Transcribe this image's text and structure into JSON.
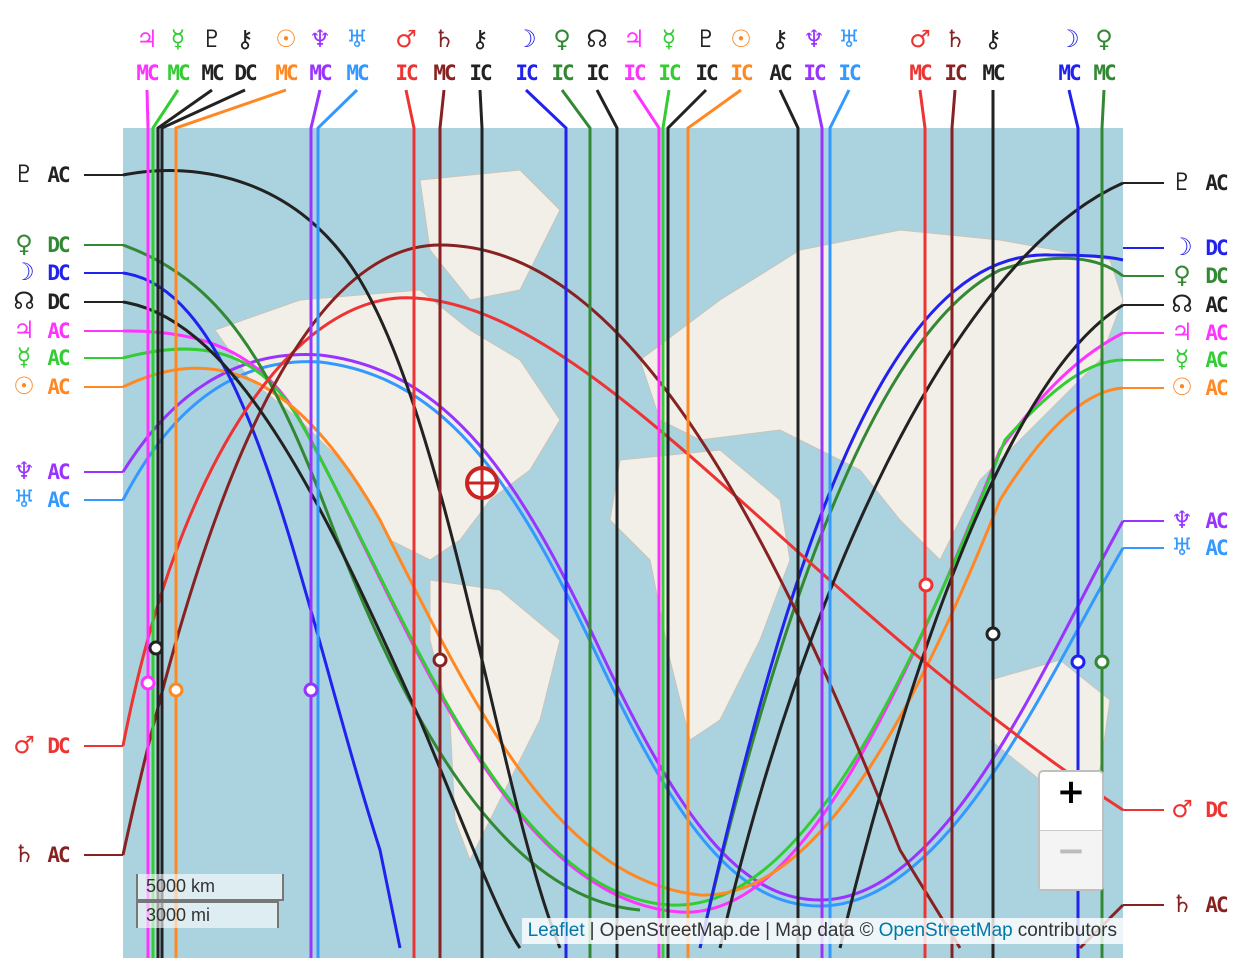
{
  "top_labels": [
    {
      "symbol": "♃",
      "angle": "MC",
      "color": "#ff33ff"
    },
    {
      "symbol": "☿",
      "angle": "MC",
      "color": "#33cc33"
    },
    {
      "symbol": "♇",
      "angle": "MC",
      "color": "#222222"
    },
    {
      "symbol": "⚷",
      "angle": "DC",
      "color": "#222222"
    },
    {
      "symbol": "☉",
      "angle": "MC",
      "color": "#ff8822"
    },
    {
      "symbol": "♆",
      "angle": "MC",
      "color": "#9933ff"
    },
    {
      "symbol": "♅",
      "angle": "MC",
      "color": "#3399ff"
    },
    {
      "symbol": "♂",
      "angle": "IC",
      "color": "#ee3333"
    },
    {
      "symbol": "♄",
      "angle": "MC",
      "color": "#882222"
    },
    {
      "symbol": "⚷",
      "angle": "IC",
      "color": "#222222"
    },
    {
      "symbol": "☽",
      "angle": "IC",
      "color": "#2222ee"
    },
    {
      "symbol": "♀",
      "angle": "IC",
      "color": "#338833"
    },
    {
      "symbol": "☊",
      "angle": "IC",
      "color": "#222222"
    },
    {
      "symbol": "♃",
      "angle": "IC",
      "color": "#ff33ff"
    },
    {
      "symbol": "☿",
      "angle": "IC",
      "color": "#33cc33"
    },
    {
      "symbol": "♇",
      "angle": "IC",
      "color": "#222222"
    },
    {
      "symbol": "☉",
      "angle": "IC",
      "color": "#ff8822"
    },
    {
      "symbol": "⚷",
      "angle": "AC",
      "color": "#222222"
    },
    {
      "symbol": "♆",
      "angle": "IC",
      "color": "#9933ff"
    },
    {
      "symbol": "♅",
      "angle": "IC",
      "color": "#3399ff"
    },
    {
      "symbol": "♂",
      "angle": "MC",
      "color": "#ee3333"
    },
    {
      "symbol": "♄",
      "angle": "IC",
      "color": "#882222"
    },
    {
      "symbol": "⚷",
      "angle": "MC",
      "color": "#222222"
    },
    {
      "symbol": "☽",
      "angle": "MC",
      "color": "#2222ee"
    },
    {
      "symbol": "♀",
      "angle": "MC",
      "color": "#338833"
    }
  ],
  "left_labels": [
    {
      "symbol": "♇",
      "angle": "AC",
      "color": "#222222"
    },
    {
      "symbol": "♀",
      "angle": "DC",
      "color": "#338833"
    },
    {
      "symbol": "☽",
      "angle": "DC",
      "color": "#2222ee"
    },
    {
      "symbol": "☊",
      "angle": "DC",
      "color": "#222222"
    },
    {
      "symbol": "♃",
      "angle": "AC",
      "color": "#ff33ff"
    },
    {
      "symbol": "☿",
      "angle": "AC",
      "color": "#33cc33"
    },
    {
      "symbol": "☉",
      "angle": "AC",
      "color": "#ff8822"
    },
    {
      "symbol": "♆",
      "angle": "AC",
      "color": "#9933ff"
    },
    {
      "symbol": "♅",
      "angle": "AC",
      "color": "#3399ff"
    },
    {
      "symbol": "♂",
      "angle": "DC",
      "color": "#ee3333"
    },
    {
      "symbol": "♄",
      "angle": "AC",
      "color": "#882222"
    }
  ],
  "right_labels": [
    {
      "symbol": "♇",
      "angle": "AC",
      "color": "#222222"
    },
    {
      "symbol": "☽",
      "angle": "DC",
      "color": "#2222ee"
    },
    {
      "symbol": "♀",
      "angle": "DC",
      "color": "#338833"
    },
    {
      "symbol": "☊",
      "angle": "AC",
      "color": "#222222"
    },
    {
      "symbol": "♃",
      "angle": "AC",
      "color": "#ff33ff"
    },
    {
      "symbol": "☿",
      "angle": "AC",
      "color": "#33cc33"
    },
    {
      "symbol": "☉",
      "angle": "AC",
      "color": "#ff8822"
    },
    {
      "symbol": "♆",
      "angle": "AC",
      "color": "#9933ff"
    },
    {
      "symbol": "♅",
      "angle": "AC",
      "color": "#3399ff"
    },
    {
      "symbol": "♂",
      "angle": "DC",
      "color": "#ee3333"
    },
    {
      "symbol": "♄",
      "angle": "AC",
      "color": "#882222"
    }
  ],
  "scale": {
    "km": "5000 km",
    "mi": "3000 mi"
  },
  "zoom": {
    "in": "+",
    "out": "−"
  },
  "attribution": [
    "Leaflet",
    "|",
    "OpenStreetMap.de",
    "|",
    "Map data ©",
    "OpenStreetMap",
    "contributors"
  ]
}
